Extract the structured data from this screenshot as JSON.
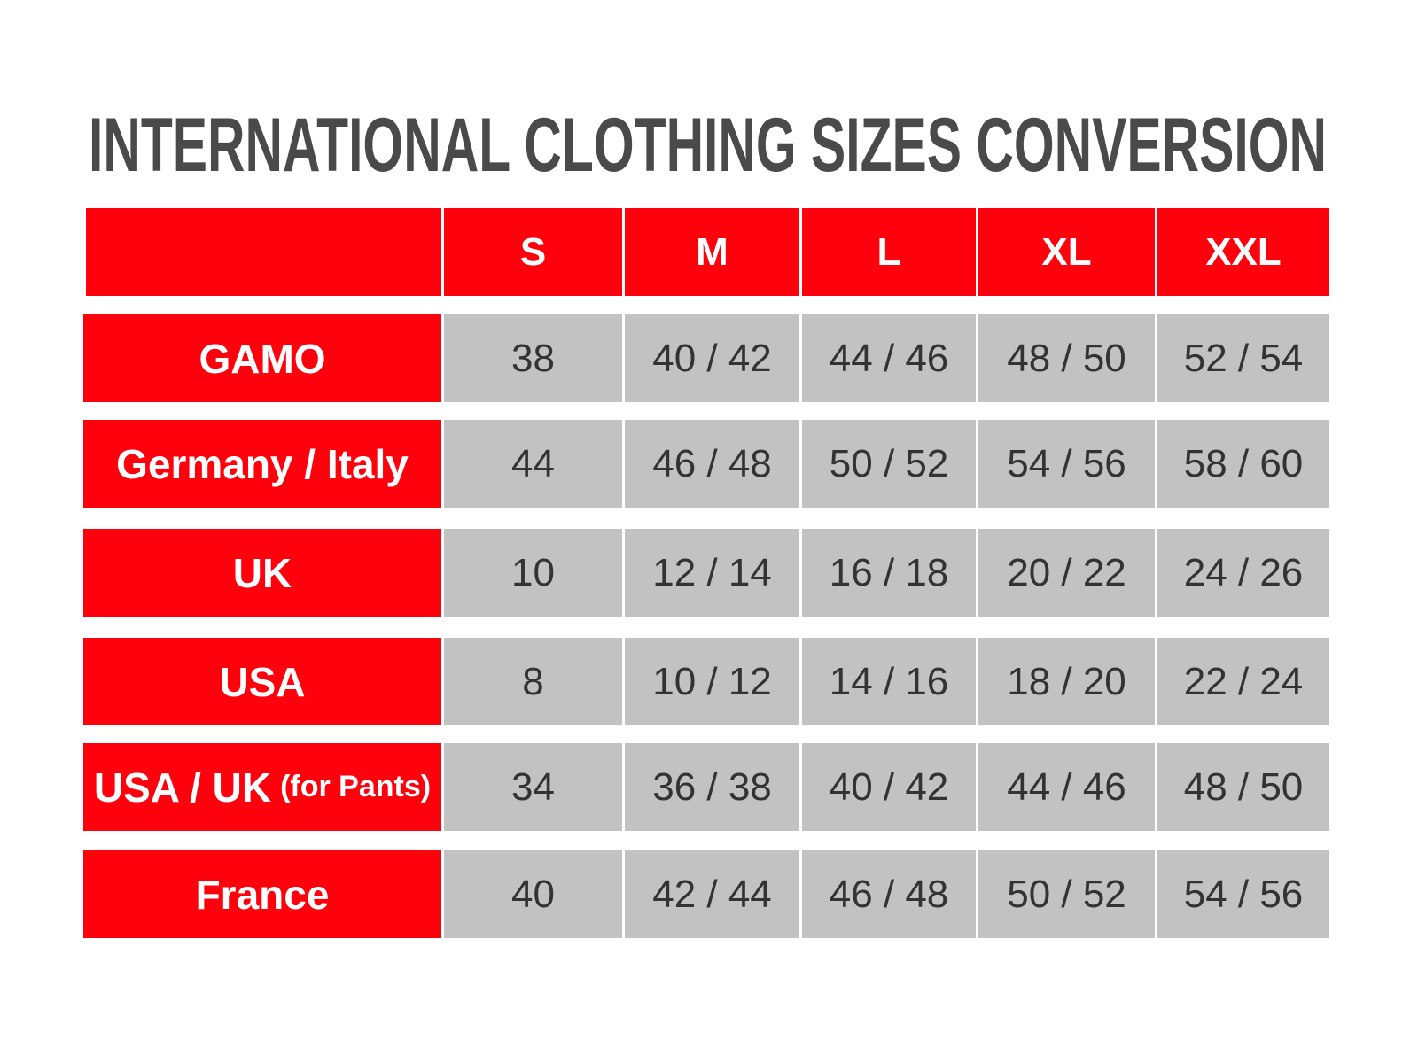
{
  "title": "INTERNATIONAL CLOTHING SIZES CONVERSION",
  "colors": {
    "header_red": "#ff000d",
    "cell_gray": "#c2c2c2",
    "title_gray": "#4a4a4a"
  },
  "table": {
    "columns": [
      "S",
      "M",
      "L",
      "XL",
      "XXL"
    ],
    "rows": [
      {
        "label": "GAMO",
        "label_sub": "",
        "values": [
          "38",
          "40 / 42",
          "44 / 46",
          "48 / 50",
          "52 / 54"
        ]
      },
      {
        "label": "Germany / Italy",
        "label_sub": "",
        "values": [
          "44",
          "46 / 48",
          "50 / 52",
          "54 / 56",
          "58 / 60"
        ]
      },
      {
        "label": "UK",
        "label_sub": "",
        "values": [
          "10",
          "12 / 14",
          "16 / 18",
          "20 / 22",
          "24 / 26"
        ]
      },
      {
        "label": "USA",
        "label_sub": "",
        "values": [
          "8",
          "10 / 12",
          "14 / 16",
          "18 / 20",
          "22 / 24"
        ]
      },
      {
        "label": "USA / UK",
        "label_sub": "(for Pants)",
        "values": [
          "34",
          "36 / 38",
          "40 / 42",
          "44 / 46",
          "48 / 50"
        ]
      },
      {
        "label": "France",
        "label_sub": "",
        "values": [
          "40",
          "42 / 44",
          "46 / 48",
          "50 / 52",
          "54 / 56"
        ]
      }
    ]
  }
}
